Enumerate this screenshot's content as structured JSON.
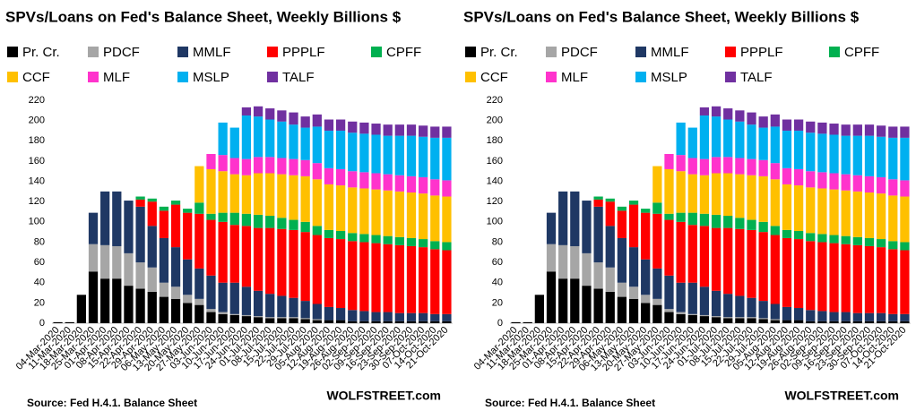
{
  "chart_data": [
    {
      "type": "stacked-bar",
      "title": "SPVs/Loans  on Fed's Balance Sheet, Weekly Billions $",
      "annotations": [
        "Source: Fed H.4.1. Balance Sheet",
        "WOLFSTREET.com"
      ],
      "categories": [
        "04-Mar-2020",
        "11-Mar-2020",
        "18-Mar-2020",
        "25-Mar-2020",
        "01-Apr-2020",
        "08-Apr-2020",
        "15-Apr-2020",
        "22-Apr-2020",
        "29-Apr-2020",
        "06-May-2020",
        "13-May-2020",
        "20-May-2020",
        "27-May-2020",
        "03-Jun-2020",
        "10-Jun-2020",
        "17-Jun-2020",
        "24-Jun-2020",
        "01-Jul-2020",
        "08-Jul-2020",
        "15-Jul-2020",
        "22-Jul-2020",
        "29-Jul-2020",
        "05-Aug-2020",
        "12-Aug-2020",
        "19-Aug-2020",
        "26-Aug-2020",
        "02-Sep-2020",
        "09-Sep-2020",
        "16-Sep-2020",
        "23-Sep-2020",
        "30-Sep-2020",
        "07-Oct-2020",
        "14-Oct-2020",
        "21-Oct-2020"
      ],
      "series": [
        {
          "name": "Pr. Cr.",
          "color": "#000000",
          "values": [
            1,
            1,
            28,
            51,
            44,
            44,
            37,
            34,
            31,
            26,
            24,
            20,
            18,
            11,
            9,
            8,
            7,
            6,
            5,
            5,
            5,
            4,
            3,
            3,
            3,
            2,
            2,
            2,
            2,
            2,
            2,
            2,
            2,
            2
          ]
        },
        {
          "name": "PDCF",
          "color": "#a6a6a6",
          "values": [
            0,
            0,
            0,
            27,
            33,
            32,
            32,
            26,
            24,
            14,
            12,
            8,
            6,
            3,
            2,
            1,
            1,
            1,
            1,
            1,
            1,
            1,
            1,
            0,
            0,
            0,
            0,
            0,
            0,
            0,
            0,
            0,
            0,
            0
          ]
        },
        {
          "name": "MMLF",
          "color": "#1f3864",
          "values": [
            0,
            0,
            0,
            31,
            53,
            54,
            52,
            55,
            41,
            44,
            39,
            35,
            30,
            33,
            29,
            31,
            28,
            25,
            23,
            21,
            19,
            17,
            15,
            13,
            12,
            11,
            10,
            9,
            9,
            8,
            8,
            8,
            7,
            7
          ]
        },
        {
          "name": "PPPLF",
          "color": "#ff0000",
          "values": [
            0,
            0,
            0,
            0,
            0,
            0,
            0,
            7,
            24,
            27,
            42,
            46,
            54,
            55,
            60,
            57,
            60,
            62,
            65,
            66,
            67,
            68,
            68,
            68,
            68,
            68,
            68,
            68,
            67,
            67,
            66,
            65,
            64,
            63
          ]
        },
        {
          "name": "CPFF",
          "color": "#00b050",
          "values": [
            0,
            0,
            0,
            0,
            0,
            0,
            0,
            3,
            3,
            4,
            4,
            4,
            11,
            6,
            9,
            12,
            12,
            13,
            12,
            11,
            10,
            10,
            9,
            8,
            8,
            8,
            8,
            8,
            8,
            8,
            8,
            8,
            8,
            8
          ]
        },
        {
          "name": "CCF",
          "color": "#ffc000",
          "values": [
            0,
            0,
            0,
            0,
            0,
            0,
            0,
            0,
            0,
            0,
            0,
            0,
            36,
            44,
            41,
            38,
            38,
            41,
            42,
            43,
            44,
            45,
            46,
            45,
            45,
            45,
            45,
            45,
            45,
            45,
            45,
            45,
            45,
            45
          ]
        },
        {
          "name": "MLF",
          "color": "#ff33cc",
          "values": [
            0,
            0,
            0,
            0,
            0,
            0,
            0,
            0,
            0,
            0,
            0,
            0,
            0,
            15,
            16,
            16,
            16,
            16,
            16,
            16,
            16,
            16,
            16,
            16,
            16,
            16,
            16,
            16,
            16,
            16,
            16,
            16,
            16,
            16
          ]
        },
        {
          "name": "MSLP",
          "color": "#00b0f0",
          "values": [
            0,
            0,
            0,
            0,
            0,
            0,
            0,
            0,
            0,
            0,
            0,
            0,
            0,
            0,
            32,
            30,
            43,
            40,
            37,
            36,
            34,
            32,
            36,
            37,
            38,
            38,
            38,
            38,
            38,
            39,
            40,
            40,
            41,
            42
          ]
        },
        {
          "name": "TALF",
          "color": "#7030a0",
          "values": [
            0,
            0,
            0,
            0,
            0,
            0,
            0,
            0,
            0,
            0,
            0,
            0,
            0,
            0,
            0,
            0,
            8,
            10,
            11,
            11,
            12,
            11,
            12,
            11,
            11,
            11,
            11,
            11,
            11,
            11,
            11,
            11,
            11,
            11
          ]
        }
      ],
      "ylim": [
        0,
        220
      ],
      "yticks": [
        0,
        20,
        40,
        60,
        80,
        100,
        120,
        140,
        160,
        180,
        200,
        220
      ],
      "grid": false
    },
    {
      "type": "stacked-bar",
      "title": "SPVs/Loans  on Fed's Balance Sheet, Weekly Billions $",
      "annotations": [
        "Source: Fed H.4.1. Balance Sheet",
        "WOLFSTREET.com"
      ],
      "categories": [
        "04-Mar-2020",
        "11-Mar-2020",
        "18-Mar-2020",
        "25-Mar-2020",
        "01-Apr-2020",
        "08-Apr-2020",
        "15-Apr-2020",
        "22-Apr-2020",
        "29-Apr-2020",
        "06-May-2020",
        "13-May-2020",
        "20-May-2020",
        "27-May-2020",
        "03-Jun-2020",
        "10-Jun-2020",
        "17-Jun-2020",
        "24-Jun-2020",
        "01-Jul-2020",
        "08-Jul-2020",
        "15-Jul-2020",
        "22-Jul-2020",
        "29-Jul-2020",
        "05-Aug-2020",
        "12-Aug-2020",
        "19-Aug-2020",
        "26-Aug-2020",
        "02-Sep-2020",
        "09-Sep-2020",
        "16-Sep-2020",
        "23-Sep-2020",
        "30-Sep-2020",
        "07-Oct-2020",
        "14-Oct-2020",
        "21-Oct-2020"
      ],
      "series": [
        {
          "name": "Pr. Cr.",
          "color": "#000000",
          "values": [
            1,
            1,
            28,
            51,
            44,
            44,
            37,
            34,
            31,
            26,
            24,
            20,
            18,
            11,
            9,
            8,
            7,
            6,
            5,
            5,
            5,
            4,
            3,
            3,
            3,
            2,
            2,
            2,
            2,
            2,
            2,
            2,
            2,
            2
          ]
        },
        {
          "name": "PDCF",
          "color": "#a6a6a6",
          "values": [
            0,
            0,
            0,
            27,
            33,
            32,
            32,
            26,
            24,
            14,
            12,
            8,
            6,
            3,
            2,
            1,
            1,
            1,
            1,
            1,
            1,
            1,
            1,
            0,
            0,
            0,
            0,
            0,
            0,
            0,
            0,
            0,
            0,
            0
          ]
        },
        {
          "name": "MMLF",
          "color": "#1f3864",
          "values": [
            0,
            0,
            0,
            31,
            53,
            54,
            52,
            55,
            41,
            44,
            39,
            35,
            30,
            33,
            29,
            31,
            28,
            25,
            23,
            21,
            19,
            17,
            15,
            13,
            12,
            11,
            10,
            9,
            9,
            8,
            8,
            8,
            7,
            7
          ]
        },
        {
          "name": "PPPLF",
          "color": "#ff0000",
          "values": [
            0,
            0,
            0,
            0,
            0,
            0,
            0,
            7,
            24,
            27,
            42,
            46,
            54,
            55,
            60,
            57,
            60,
            62,
            65,
            66,
            67,
            68,
            68,
            68,
            68,
            68,
            68,
            68,
            67,
            67,
            66,
            65,
            64,
            63
          ]
        },
        {
          "name": "CPFF",
          "color": "#00b050",
          "values": [
            0,
            0,
            0,
            0,
            0,
            0,
            0,
            3,
            3,
            4,
            4,
            4,
            11,
            6,
            9,
            12,
            12,
            13,
            12,
            11,
            10,
            10,
            9,
            8,
            8,
            8,
            8,
            8,
            8,
            8,
            8,
            8,
            8,
            8
          ]
        },
        {
          "name": "CCF",
          "color": "#ffc000",
          "values": [
            0,
            0,
            0,
            0,
            0,
            0,
            0,
            0,
            0,
            0,
            0,
            0,
            36,
            44,
            41,
            38,
            38,
            41,
            42,
            43,
            44,
            45,
            46,
            45,
            45,
            45,
            45,
            45,
            45,
            45,
            45,
            45,
            45,
            45
          ]
        },
        {
          "name": "MLF",
          "color": "#ff33cc",
          "values": [
            0,
            0,
            0,
            0,
            0,
            0,
            0,
            0,
            0,
            0,
            0,
            0,
            0,
            15,
            16,
            16,
            16,
            16,
            16,
            16,
            16,
            16,
            16,
            16,
            16,
            16,
            16,
            16,
            16,
            16,
            16,
            16,
            16,
            16
          ]
        },
        {
          "name": "MSLP",
          "color": "#00b0f0",
          "values": [
            0,
            0,
            0,
            0,
            0,
            0,
            0,
            0,
            0,
            0,
            0,
            0,
            0,
            0,
            32,
            30,
            43,
            40,
            37,
            36,
            34,
            32,
            36,
            37,
            38,
            38,
            38,
            38,
            38,
            39,
            40,
            40,
            41,
            42
          ]
        },
        {
          "name": "TALF",
          "color": "#7030a0",
          "values": [
            0,
            0,
            0,
            0,
            0,
            0,
            0,
            0,
            0,
            0,
            0,
            0,
            0,
            0,
            0,
            0,
            8,
            10,
            11,
            11,
            12,
            11,
            12,
            11,
            11,
            11,
            11,
            11,
            11,
            11,
            11,
            11,
            11,
            11
          ]
        }
      ],
      "ylim": [
        0,
        220
      ],
      "yticks": [
        0,
        20,
        40,
        60,
        80,
        100,
        120,
        140,
        160,
        180,
        200,
        220
      ],
      "grid": false
    }
  ]
}
